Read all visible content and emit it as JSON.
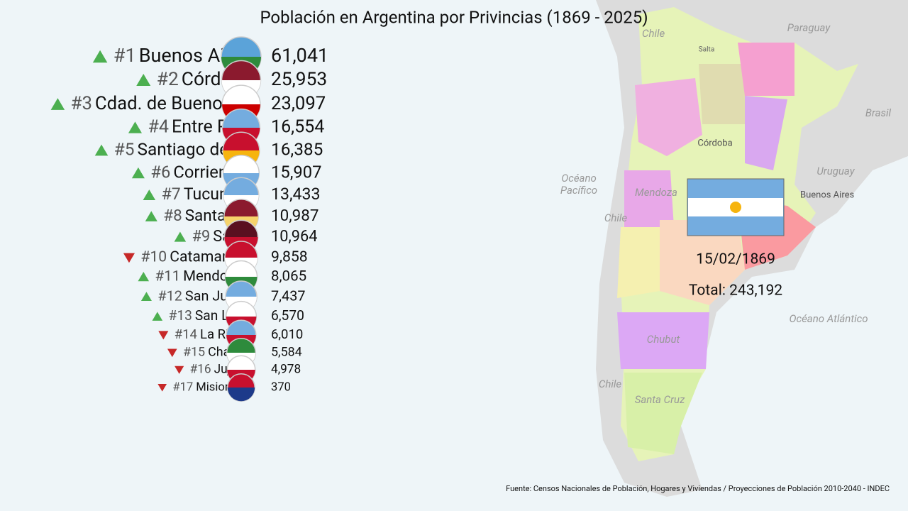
{
  "title": "Población en Argentina por Privincias (1869 - 2025)",
  "rows": [
    {
      "trend": "up",
      "rank": "#1",
      "name": "Buenos Air",
      "value": "61,041"
    },
    {
      "trend": "up",
      "rank": "#2",
      "name": "Córdo",
      "value": "25,953"
    },
    {
      "trend": "up",
      "rank": "#3",
      "name": "Cdad. de Buenos",
      "value": "23,097"
    },
    {
      "trend": "up",
      "rank": "#4",
      "name": "Entre Rí",
      "value": "16,554"
    },
    {
      "trend": "up",
      "rank": "#5",
      "name": "Santiago del",
      "value": "16,385"
    },
    {
      "trend": "up",
      "rank": "#6",
      "name": "Corrient",
      "value": "15,907"
    },
    {
      "trend": "up",
      "rank": "#7",
      "name": "Tucum",
      "value": "13,433"
    },
    {
      "trend": "up",
      "rank": "#8",
      "name": "Santa I",
      "value": "10,987"
    },
    {
      "trend": "up",
      "rank": "#9",
      "name": "Sal",
      "value": "10,964"
    },
    {
      "trend": "down",
      "rank": "#10",
      "name": "Catamarc",
      "value": "9,858"
    },
    {
      "trend": "up",
      "rank": "#11",
      "name": "Mendoz",
      "value": "8,065"
    },
    {
      "trend": "up",
      "rank": "#12",
      "name": "San Jua",
      "value": "7,437"
    },
    {
      "trend": "up",
      "rank": "#13",
      "name": "San Lu",
      "value": "6,570"
    },
    {
      "trend": "down",
      "rank": "#14",
      "name": "La Rio",
      "value": "6,010"
    },
    {
      "trend": "down",
      "rank": "#15",
      "name": "Chac",
      "value": "5,584"
    },
    {
      "trend": "down",
      "rank": "#16",
      "name": "Juju",
      "value": "4,978"
    },
    {
      "trend": "down",
      "rank": "#17",
      "name": "Misione",
      "value": "370"
    }
  ],
  "date": "15/02/1869",
  "total": "Total: 243,192",
  "source": "Fuente: Censos Nacionales de Población, Hogares y Viviendas / Proyecciones de Población 2010-2040 - INDEC",
  "map_labels": [
    "Chile",
    "Paraguay",
    "Brasil",
    "Uruguay",
    "Océano",
    "Pacífico",
    "Océano Atlántico",
    "Chile",
    "Chile",
    "Córdoba",
    "Buenos Aires",
    "Santa Cruz",
    "Chubut",
    "Mendoza",
    "Salta"
  ]
}
